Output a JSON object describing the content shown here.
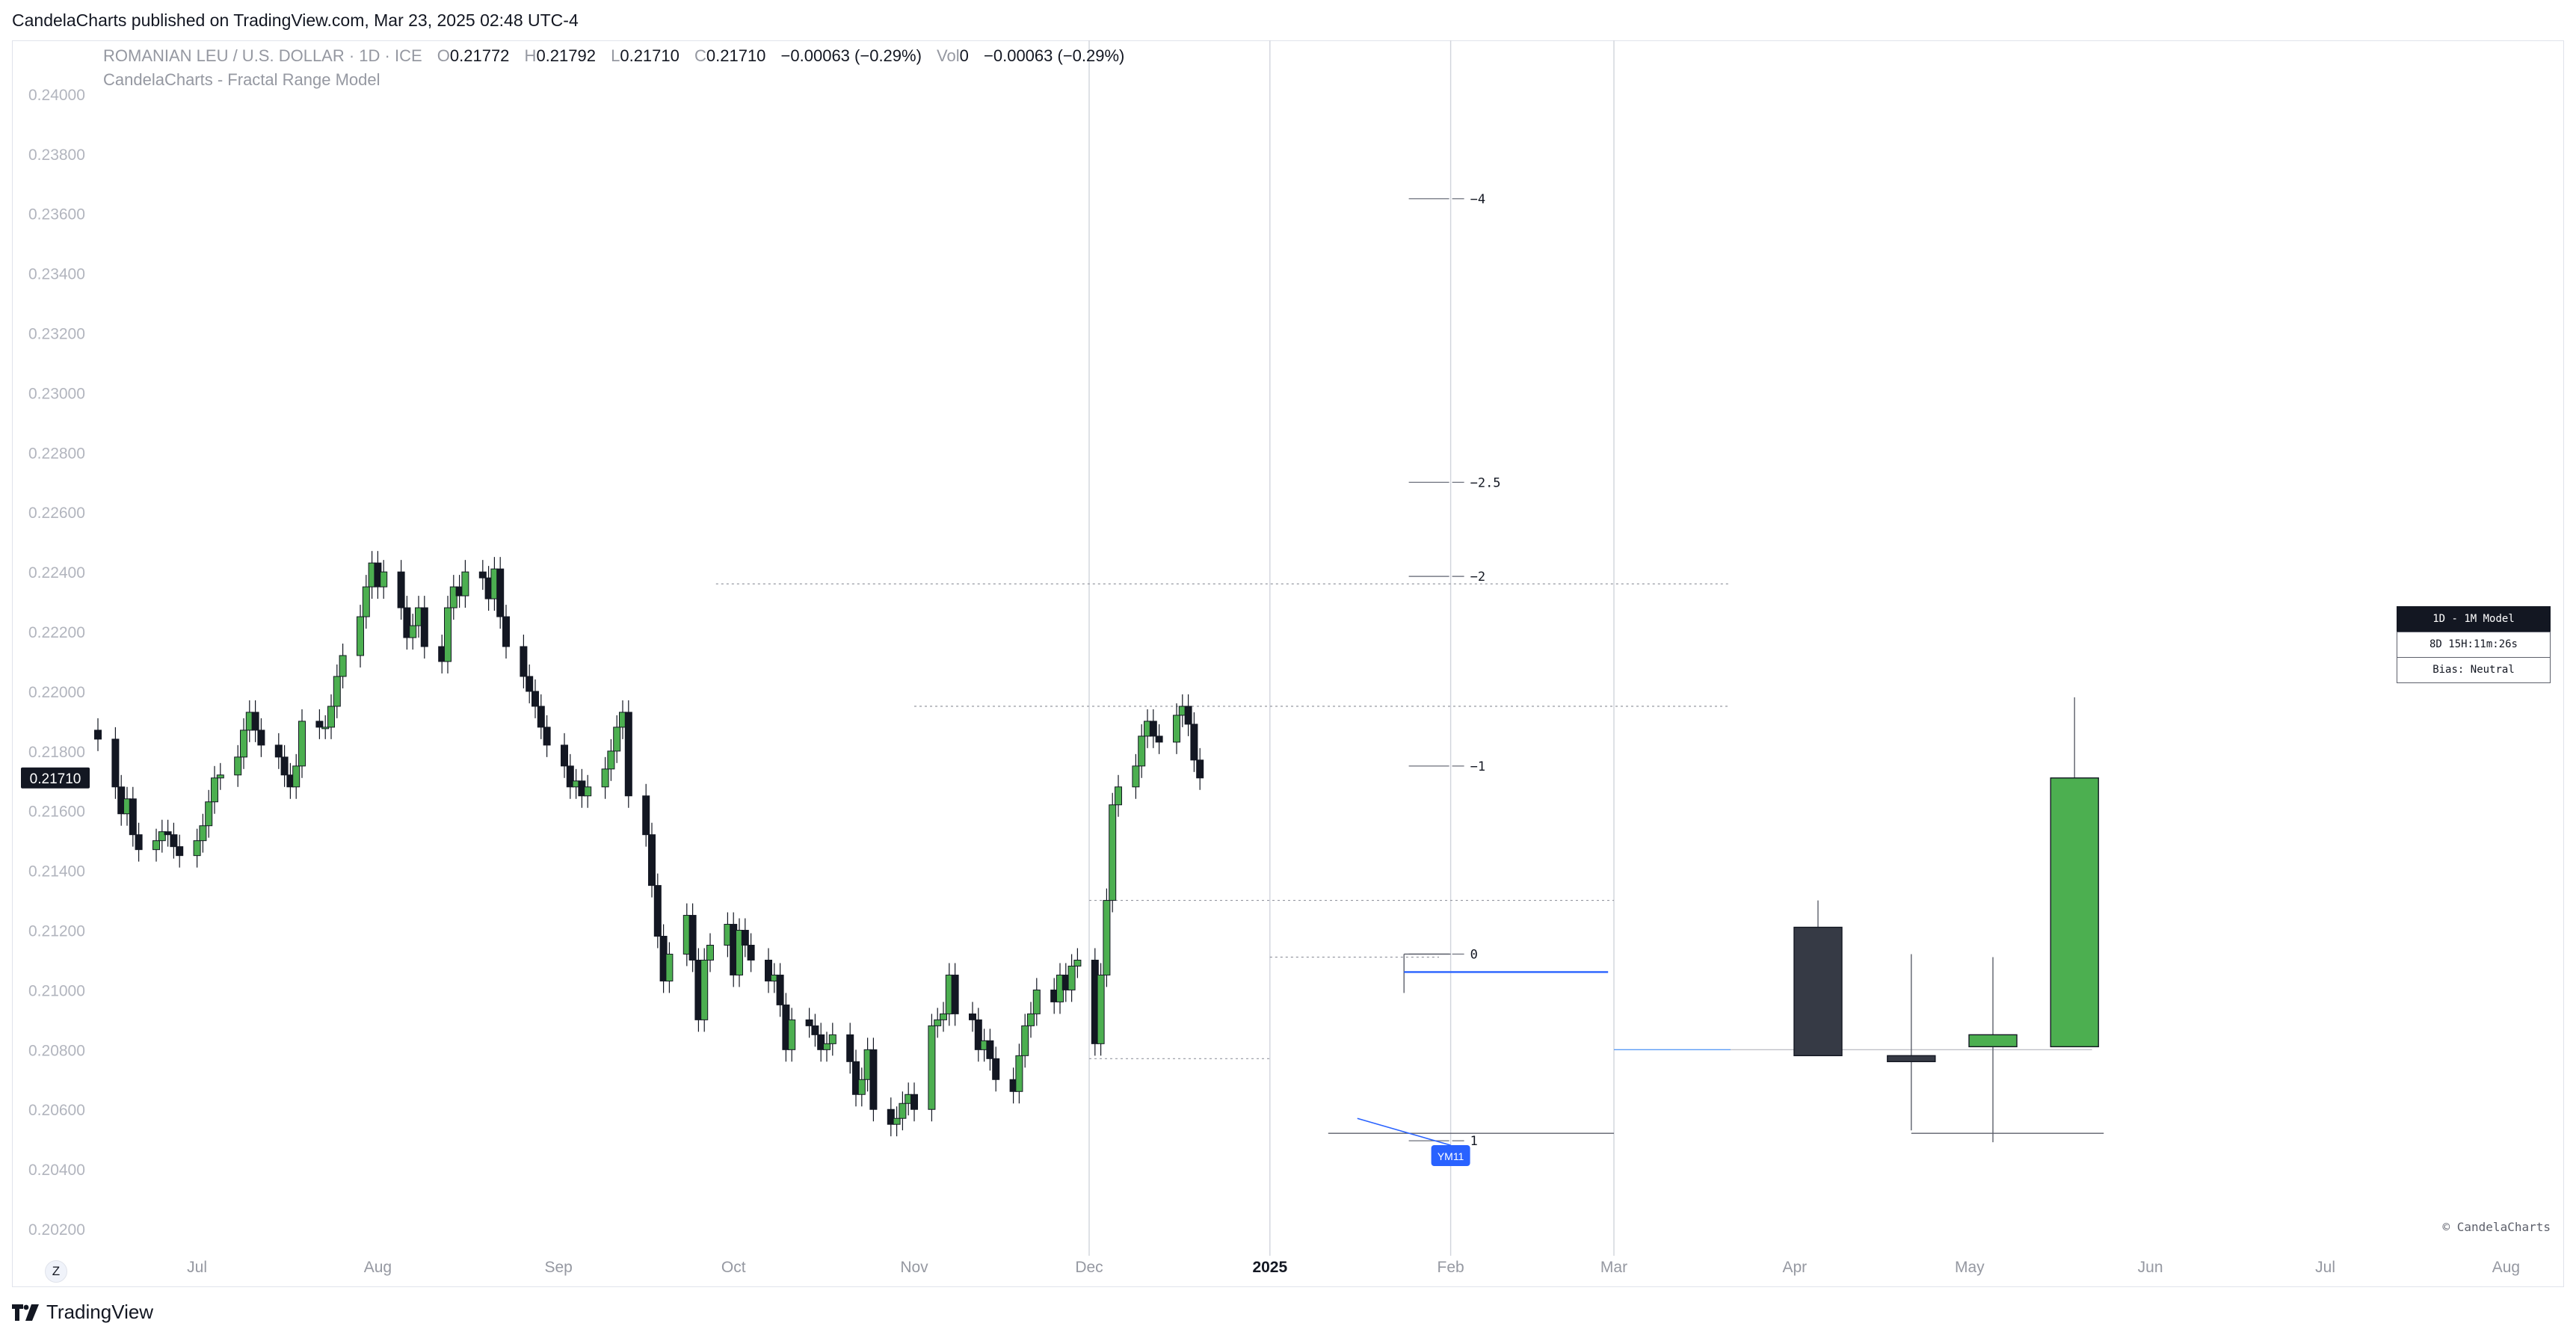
{
  "header": {
    "published": "CandelaCharts published on TradingView.com, Mar 23, 2025 02:48 UTC-4"
  },
  "legend": {
    "symbol": "ROMANIAN LEU / U.S. DOLLAR · 1D · ICE",
    "o_label": "O",
    "o_value": "0.21772",
    "h_label": "H",
    "h_value": "0.21792",
    "l_label": "L",
    "l_value": "0.21710",
    "c_label": "C",
    "c_value": "0.21710",
    "change": "−0.00063 (−0.29%)",
    "vol_label": "Vol",
    "vol_value": "0",
    "vol_change": "−0.00063 (−0.29%)",
    "indicator": "CandelaCharts - Fractal Range Model"
  },
  "model_box": {
    "title": "1D - 1M Model",
    "timer": "8D 15H:11m:26s",
    "bias": "Bias: Neutral"
  },
  "watermark": "© CandelaCharts",
  "footer": {
    "brand": "TradingView",
    "z_button": "Z"
  },
  "colors": {
    "up": "#4caf50",
    "down": "#131722",
    "grid": "#f0f3fa",
    "axis_text": "#b2b5be",
    "blue": "#2962ff",
    "proj_down": "#363a45"
  },
  "chart_data": {
    "type": "candlestick",
    "ylim": [
      0.2016,
      0.241
    ],
    "y_ticks": [
      "0.24000",
      "0.23800",
      "0.23600",
      "0.23400",
      "0.23200",
      "0.23000",
      "0.22800",
      "0.22600",
      "0.22400",
      "0.22200",
      "0.22000",
      "0.21800",
      "0.21600",
      "0.21400",
      "0.21200",
      "0.21000",
      "0.20800",
      "0.20600",
      "0.20400",
      "0.20200"
    ],
    "y_tick_values": [
      0.24,
      0.238,
      0.236,
      0.234,
      0.232,
      0.23,
      0.228,
      0.226,
      0.224,
      0.222,
      0.22,
      0.218,
      0.216,
      0.214,
      0.212,
      0.21,
      0.208,
      0.206,
      0.204,
      0.202
    ],
    "x_ticks": [
      {
        "label": "Jul",
        "date": "2024-07-01"
      },
      {
        "label": "Aug",
        "date": "2024-08-01"
      },
      {
        "label": "Sep",
        "date": "2024-09-01"
      },
      {
        "label": "Oct",
        "date": "2024-10-01"
      },
      {
        "label": "Nov",
        "date": "2024-11-01"
      },
      {
        "label": "Dec",
        "date": "2024-12-01"
      },
      {
        "label": "2025",
        "date": "2025-01-01",
        "bold": true
      },
      {
        "label": "Feb",
        "date": "2025-02-01"
      },
      {
        "label": "Mar",
        "date": "2025-03-01"
      },
      {
        "label": "Apr",
        "date": "2025-04-01"
      },
      {
        "label": "May",
        "date": "2025-05-01"
      },
      {
        "label": "Jun",
        "date": "2025-06-01"
      },
      {
        "label": "Jul",
        "date": "2025-07-01"
      },
      {
        "label": "Aug",
        "date": "2025-08-01"
      }
    ],
    "vertical_lines": [
      "2024-12-01",
      "2025-01-01",
      "2025-02-01",
      "2025-03-01"
    ],
    "last_price": {
      "label": "0.21710",
      "value": 0.2171
    },
    "start_date": "2024-06-14",
    "closes": [
      0.2184,
      0.2168,
      0.2159,
      0.2164,
      0.2152,
      0.2147,
      0.215,
      0.2153,
      0.2152,
      0.2148,
      0.2145,
      0.215,
      0.2155,
      0.2163,
      0.2171,
      0.2172,
      0.2178,
      0.2187,
      0.2193,
      0.2187,
      0.2182,
      0.2178,
      0.2172,
      0.2168,
      0.2175,
      0.219,
      0.2188,
      0.2188,
      0.2195,
      0.2205,
      0.2212,
      0.2225,
      0.2235,
      0.2243,
      0.2235,
      0.224,
      0.2228,
      0.2218,
      0.2222,
      0.2228,
      0.2215,
      0.221,
      0.2228,
      0.2235,
      0.2232,
      0.224,
      0.2238,
      0.2231,
      0.2241,
      0.2225,
      0.2215,
      0.2205,
      0.22,
      0.2195,
      0.2188,
      0.2182,
      0.2175,
      0.2168,
      0.217,
      0.2165,
      0.2168,
      0.2174,
      0.218,
      0.2188,
      0.2193,
      0.2165,
      0.2152,
      0.2135,
      0.2118,
      0.2103,
      0.2112,
      0.2125,
      0.211,
      0.209,
      0.211,
      0.2115,
      0.2122,
      0.2105,
      0.212,
      0.2115,
      0.211,
      0.2103,
      0.2105,
      0.2095,
      0.208,
      0.209,
      0.2088,
      0.2085,
      0.208,
      0.2082,
      0.2085,
      0.2076,
      0.2065,
      0.207,
      0.208,
      0.206,
      0.2055,
      0.2057,
      0.2062,
      0.2065,
      0.206,
      0.2088,
      0.209,
      0.2092,
      0.2105,
      0.2092,
      0.209,
      0.208,
      0.2083,
      0.2077,
      0.207,
      0.2066,
      0.2078,
      0.2088,
      0.2092,
      0.21,
      0.2096,
      0.2105,
      0.21,
      0.2108,
      0.211,
      0.2082,
      0.2105,
      0.213,
      0.2162,
      0.2168,
      0.2175,
      0.2185,
      0.219,
      0.2185,
      0.2183,
      0.2192,
      0.2195,
      0.2189,
      0.2177,
      0.2171
    ],
    "levels": [
      {
        "label": "−4",
        "value": 0.2365
      },
      {
        "label": "−2.5",
        "value": 0.227
      },
      {
        "label": "−2",
        "value": 0.22385
      },
      {
        "label": "−1",
        "value": 0.2175
      },
      {
        "label": "0",
        "value": 0.2112
      },
      {
        "label": "1",
        "value": 0.20495
      }
    ],
    "annotation_label": "YM11",
    "projection": [
      {
        "date": "2025-04-05",
        "open": 0.2121,
        "high": 0.213,
        "low": 0.2078,
        "close": 0.2078
      },
      {
        "date": "2025-04-21",
        "open": 0.2078,
        "high": 0.2112,
        "low": 0.2053,
        "close": 0.2076
      },
      {
        "date": "2025-05-05",
        "open": 0.2081,
        "high": 0.2111,
        "low": 0.2049,
        "close": 0.2085
      },
      {
        "date": "2025-05-19",
        "open": 0.2081,
        "high": 0.2198,
        "low": 0.2081,
        "close": 0.2171
      }
    ]
  }
}
